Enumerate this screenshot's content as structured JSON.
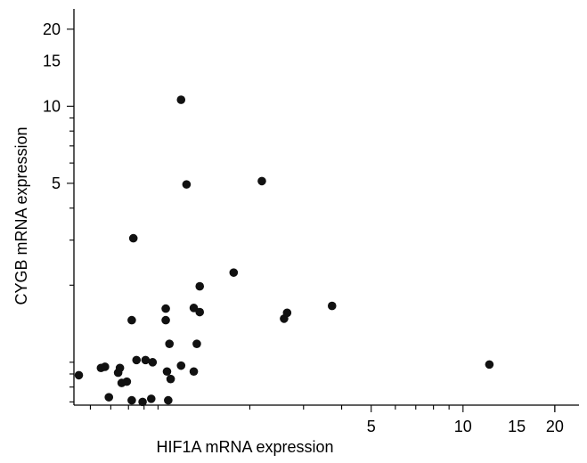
{
  "chart_data": {
    "type": "scatter",
    "title": "",
    "xlabel": "HIF1A mRNA expression",
    "ylabel": "CYGB mRNA expression",
    "x_scale": "log",
    "y_scale": "log",
    "xlim": [
      0.53,
      24
    ],
    "ylim": [
      0.68,
      24
    ],
    "x_tick_labels": [
      "5",
      "10",
      "15",
      "20"
    ],
    "x_ticks": [
      5,
      10,
      15,
      20
    ],
    "y_tick_labels": [
      "20",
      "15",
      "10",
      "5"
    ],
    "y_ticks": [
      20,
      15,
      10,
      5
    ],
    "grid": false,
    "legend": "none",
    "marker_color": "#111111",
    "points": [
      {
        "x": 0.55,
        "y": 0.89
      },
      {
        "x": 0.65,
        "y": 0.95
      },
      {
        "x": 0.67,
        "y": 0.96
      },
      {
        "x": 0.69,
        "y": 0.73
      },
      {
        "x": 0.74,
        "y": 0.91
      },
      {
        "x": 0.75,
        "y": 0.95
      },
      {
        "x": 0.76,
        "y": 0.83
      },
      {
        "x": 0.79,
        "y": 0.84
      },
      {
        "x": 0.82,
        "y": 0.71
      },
      {
        "x": 0.82,
        "y": 1.46
      },
      {
        "x": 0.83,
        "y": 3.05
      },
      {
        "x": 0.85,
        "y": 1.02
      },
      {
        "x": 0.89,
        "y": 0.7
      },
      {
        "x": 0.91,
        "y": 1.02
      },
      {
        "x": 0.95,
        "y": 0.72
      },
      {
        "x": 0.96,
        "y": 1.0
      },
      {
        "x": 1.06,
        "y": 1.62
      },
      {
        "x": 1.06,
        "y": 1.46
      },
      {
        "x": 1.07,
        "y": 0.92
      },
      {
        "x": 1.08,
        "y": 0.71
      },
      {
        "x": 1.09,
        "y": 1.18
      },
      {
        "x": 1.1,
        "y": 0.86
      },
      {
        "x": 1.19,
        "y": 10.6
      },
      {
        "x": 1.19,
        "y": 0.97
      },
      {
        "x": 1.24,
        "y": 4.95
      },
      {
        "x": 1.31,
        "y": 1.63
      },
      {
        "x": 1.31,
        "y": 0.92
      },
      {
        "x": 1.34,
        "y": 1.18
      },
      {
        "x": 1.37,
        "y": 1.57
      },
      {
        "x": 1.37,
        "y": 1.98
      },
      {
        "x": 1.77,
        "y": 2.24
      },
      {
        "x": 2.19,
        "y": 5.1
      },
      {
        "x": 2.59,
        "y": 1.48
      },
      {
        "x": 2.65,
        "y": 1.56
      },
      {
        "x": 3.72,
        "y": 1.66
      },
      {
        "x": 12.2,
        "y": 0.98
      }
    ]
  }
}
